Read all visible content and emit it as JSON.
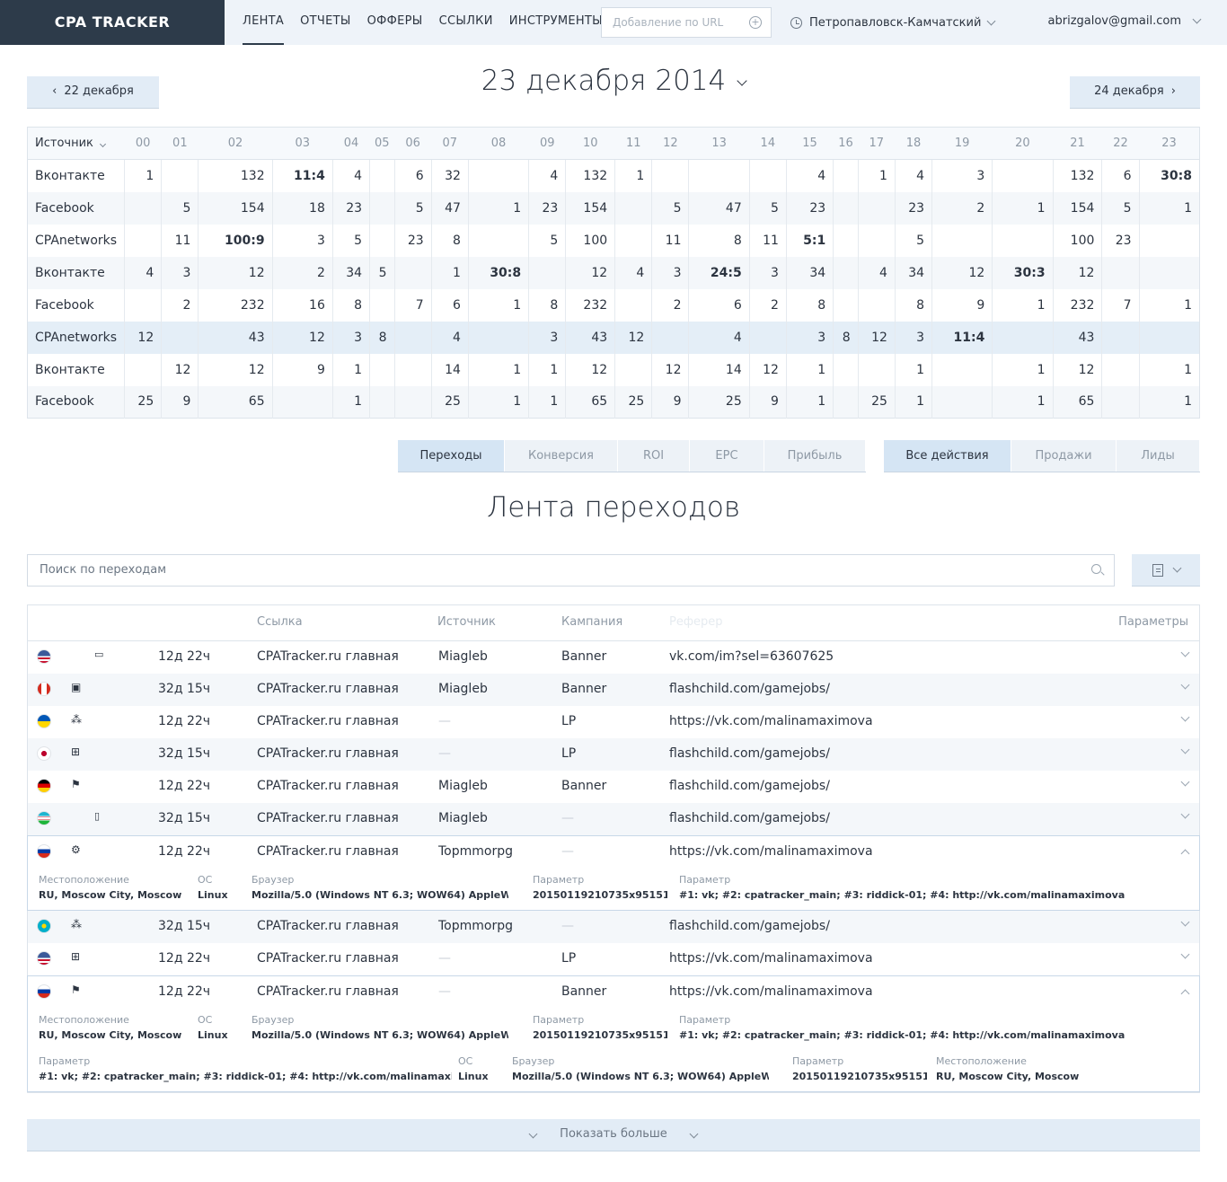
{
  "header": {
    "logo": "CPA TRACKER",
    "nav": [
      "ЛЕНТА",
      "ОТЧЕТЫ",
      "ОФФЕРЫ",
      "ССЫЛКИ",
      "ИНСТРУМЕНТЫ"
    ],
    "url_placeholder": "Добавление по URL",
    "city": "Петропавловск-Камчатский",
    "user": "abrizgalov@gmail.com"
  },
  "date": {
    "prev": "22 декабря",
    "title": "23 декабря 2014",
    "next": "24 декабря"
  },
  "grid": {
    "source_header": "Источник",
    "hours": [
      "00",
      "01",
      "02",
      "03",
      "04",
      "05",
      "06",
      "07",
      "08",
      "09",
      "10",
      "11",
      "12",
      "13",
      "14",
      "15",
      "16",
      "17",
      "18",
      "19",
      "20",
      "21",
      "22",
      "23"
    ],
    "rows": [
      {
        "source": "Вконтакте",
        "cells": [
          "1",
          "",
          "132",
          "*11:4",
          "4",
          "",
          "6",
          "32",
          "",
          "4",
          "132",
          "1",
          "",
          "",
          "",
          "4",
          "",
          "1",
          "4",
          "3",
          "",
          "132",
          "6",
          "*30:8"
        ]
      },
      {
        "source": "Facebook",
        "cells": [
          "",
          "5",
          "154",
          "18",
          "23",
          "",
          "5",
          "47",
          "1",
          "23",
          "154",
          "",
          "5",
          "47",
          "5",
          "23",
          "",
          "",
          "23",
          "2",
          "1",
          "154",
          "5",
          "1"
        ]
      },
      {
        "source": "CPAnetworks",
        "cells": [
          "",
          "11",
          "*100:9",
          "3",
          "5",
          "",
          "23",
          "8",
          "",
          "5",
          "100",
          "",
          "11",
          "8",
          "11",
          "*5:1",
          "",
          "",
          "5",
          "",
          "",
          "100",
          "23",
          ""
        ]
      },
      {
        "source": "Вконтакте",
        "cells": [
          "4",
          "3",
          "12",
          "2",
          "34",
          "5",
          "",
          "1",
          "*30:8",
          "",
          "12",
          "4",
          "3",
          "*24:5",
          "3",
          "34",
          "",
          "4",
          "34",
          "12",
          "*30:3",
          "12",
          "",
          ""
        ]
      },
      {
        "source": "Facebook",
        "cells": [
          "",
          "2",
          "232",
          "16",
          "8",
          "",
          "7",
          "6",
          "1",
          "8",
          "232",
          "",
          "2",
          "6",
          "2",
          "8",
          "",
          "",
          "8",
          "9",
          "1",
          "232",
          "7",
          "1"
        ]
      },
      {
        "source": "CPAnetworks",
        "cells": [
          "12",
          "",
          "43",
          "12",
          "3",
          "8",
          "",
          "4",
          "",
          "3",
          "43",
          "12",
          "",
          "4",
          "",
          "3",
          "8",
          "12",
          "3",
          "*11:4",
          "",
          "43",
          "",
          ""
        ]
      },
      {
        "source": "Вконтакте",
        "cells": [
          "",
          "12",
          "12",
          "9",
          "1",
          "",
          "",
          "14",
          "1",
          "1",
          "12",
          "",
          "12",
          "14",
          "12",
          "1",
          "",
          "",
          "1",
          "",
          "1",
          "12",
          "",
          "1"
        ]
      },
      {
        "source": "Facebook",
        "cells": [
          "25",
          "9",
          "65",
          "",
          "1",
          "",
          "",
          "25",
          "1",
          "1",
          "65",
          "25",
          "9",
          "25",
          "9",
          "1",
          "",
          "25",
          "1",
          "",
          "1",
          "65",
          "",
          "1"
        ]
      }
    ]
  },
  "metric_tabs": [
    "Переходы",
    "Конверсия",
    "ROI",
    "EPC",
    "Прибыль"
  ],
  "action_tabs": [
    "Все действия",
    "Продажи",
    "Лиды"
  ],
  "feed": {
    "title": "Лента переходов",
    "search_placeholder": "Поиск по переходам",
    "columns": {
      "link": "Ссылка",
      "source": "Источник",
      "campaign": "Кампания",
      "referer": "Реферер",
      "params": "Параметры"
    },
    "rows": [
      {
        "flag": "us",
        "os": "apple",
        "device": "tablet",
        "time": "12д 22ч",
        "link": "CPATracker.ru главная",
        "source": "Miagleb",
        "campaign": "Banner",
        "referer": "vk.com/im?sel=63607625"
      },
      {
        "flag": "ca",
        "os": "android",
        "device": "",
        "time": "32д 15ч",
        "link": "CPATracker.ru главная",
        "source": "Miagleb",
        "campaign": "Banner",
        "referer": "flashchild.com/gamejobs/"
      },
      {
        "flag": "ua",
        "os": "blackberry",
        "device": "",
        "time": "12д 22ч",
        "link": "CPATracker.ru главная",
        "source": "—",
        "campaign": "LP",
        "referer": "https://vk.com/malinamaximova"
      },
      {
        "flag": "jp",
        "os": "windows",
        "device": "",
        "time": "32д 15ч",
        "link": "CPATracker.ru главная",
        "source": "—",
        "campaign": "LP",
        "referer": "flashchild.com/gamejobs/"
      },
      {
        "flag": "de",
        "os": "winxp",
        "device": "",
        "time": "12д 22ч",
        "link": "CPATracker.ru главная",
        "source": "Miagleb",
        "campaign": "Banner",
        "referer": "flashchild.com/gamejobs/"
      },
      {
        "flag": "uz",
        "os": "apple",
        "device": "phone",
        "time": "32д 15ч",
        "link": "CPATracker.ru главная",
        "source": "Miagleb",
        "campaign": "—",
        "referer": "flashchild.com/gamejobs/"
      },
      {
        "flag": "ru",
        "os": "ubuntu",
        "device": "",
        "time": "12д 22ч",
        "link": "CPATracker.ru главная",
        "source": "Topmmorpg",
        "campaign": "—",
        "referer": "https://vk.com/malinamaximova"
      },
      {
        "flag": "kz",
        "os": "blackberry",
        "device": "",
        "time": "32д 15ч",
        "link": "CPATracker.ru главная",
        "source": "Topmmorpg",
        "campaign": "—",
        "referer": "flashchild.com/gamejobs/"
      },
      {
        "flag": "us",
        "os": "windows",
        "device": "",
        "time": "12д 22ч",
        "link": "CPATracker.ru главная",
        "source": "—",
        "campaign": "LP",
        "referer": "https://vk.com/malinamaximova"
      },
      {
        "flag": "ru",
        "os": "winxp",
        "device": "",
        "time": "12д 22ч",
        "link": "CPATracker.ru главная",
        "source": "—",
        "campaign": "Banner",
        "referer": "https://vk.com/malinamaximova"
      }
    ],
    "detail_labels": {
      "location": "Местоположение",
      "os": "ОС",
      "browser": "Браузер",
      "param": "Параметр"
    },
    "detail_values": {
      "location": "RU, Moscow City, Moscow",
      "os": "Linux",
      "browser": "Mozilla/5.0 (Windows NT 6.3; WOW64) AppleWebKit",
      "param1": "20150119210735x95151",
      "param2": "#1: vk; #2: cpatracker_main; #3: riddick-01; #4: http://vk.com/malinamaximova"
    },
    "show_more": "Показать больше"
  }
}
